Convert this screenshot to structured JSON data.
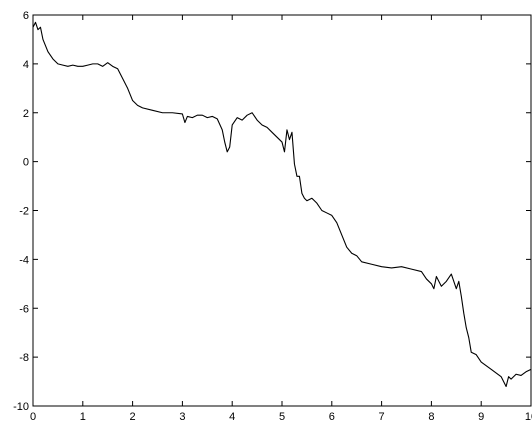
{
  "chart_data": {
    "type": "line",
    "title": "",
    "xlabel": "",
    "ylabel": "",
    "xlim": [
      0,
      10
    ],
    "ylim": [
      -10,
      6
    ],
    "grid": false,
    "x_ticks": [
      0,
      1,
      2,
      3,
      4,
      5,
      6,
      7,
      8,
      9,
      10
    ],
    "x_tick_labels": [
      "0",
      "1",
      "2",
      "3",
      "4",
      "5",
      "6",
      "7",
      "8",
      "9",
      "10"
    ],
    "y_ticks": [
      -10,
      -8,
      -6,
      -4,
      -2,
      0,
      2,
      4,
      6
    ],
    "y_tick_labels": [
      "-10",
      "-8",
      "-6",
      "-4",
      "-2",
      "0",
      "2",
      "4",
      "6"
    ],
    "line_color": "#000000",
    "series": [
      {
        "x": [
          0.0,
          0.05,
          0.1,
          0.15,
          0.2,
          0.3,
          0.4,
          0.5,
          0.6,
          0.7,
          0.8,
          0.9,
          1.0,
          1.1,
          1.2,
          1.3,
          1.4,
          1.5,
          1.6,
          1.7,
          1.8,
          1.9,
          2.0,
          2.1,
          2.2,
          2.4,
          2.6,
          2.8,
          3.0,
          3.05,
          3.1,
          3.2,
          3.3,
          3.4,
          3.5,
          3.6,
          3.7,
          3.8,
          3.85,
          3.9,
          3.95,
          4.0,
          4.1,
          4.2,
          4.3,
          4.4,
          4.5,
          4.6,
          4.7,
          4.8,
          4.9,
          5.0,
          5.05,
          5.1,
          5.15,
          5.2,
          5.25,
          5.3,
          5.35,
          5.4,
          5.45,
          5.5,
          5.6,
          5.7,
          5.8,
          5.9,
          6.0,
          6.1,
          6.2,
          6.3,
          6.4,
          6.5,
          6.6,
          6.8,
          7.0,
          7.2,
          7.4,
          7.6,
          7.8,
          7.9,
          8.0,
          8.05,
          8.1,
          8.2,
          8.3,
          8.4,
          8.5,
          8.55,
          8.6,
          8.65,
          8.7,
          8.75,
          8.8,
          8.9,
          9.0,
          9.2,
          9.4,
          9.5,
          9.55,
          9.6,
          9.7,
          9.8,
          9.9,
          10.0
        ],
        "y": [
          5.5,
          5.7,
          5.4,
          5.5,
          5.0,
          4.5,
          4.2,
          4.0,
          3.95,
          3.9,
          3.95,
          3.9,
          3.9,
          3.95,
          4.0,
          4.0,
          3.9,
          4.05,
          3.9,
          3.8,
          3.4,
          3.0,
          2.5,
          2.3,
          2.2,
          2.1,
          2.0,
          2.0,
          1.95,
          1.6,
          1.85,
          1.8,
          1.9,
          1.9,
          1.8,
          1.85,
          1.75,
          1.3,
          0.8,
          0.4,
          0.6,
          1.5,
          1.8,
          1.7,
          1.9,
          2.0,
          1.7,
          1.5,
          1.4,
          1.2,
          1.0,
          0.8,
          0.4,
          1.3,
          0.9,
          1.2,
          -0.1,
          -0.6,
          -0.6,
          -1.3,
          -1.5,
          -1.6,
          -1.5,
          -1.7,
          -2.0,
          -2.1,
          -2.2,
          -2.5,
          -3.0,
          -3.5,
          -3.75,
          -3.85,
          -4.1,
          -4.2,
          -4.3,
          -4.35,
          -4.3,
          -4.4,
          -4.5,
          -4.8,
          -5.0,
          -5.2,
          -4.7,
          -5.1,
          -4.9,
          -4.6,
          -5.2,
          -4.9,
          -5.5,
          -6.2,
          -6.8,
          -7.2,
          -7.8,
          -7.9,
          -8.2,
          -8.5,
          -8.8,
          -9.2,
          -8.8,
          -8.9,
          -8.7,
          -8.75,
          -8.6,
          -8.5
        ]
      }
    ]
  }
}
